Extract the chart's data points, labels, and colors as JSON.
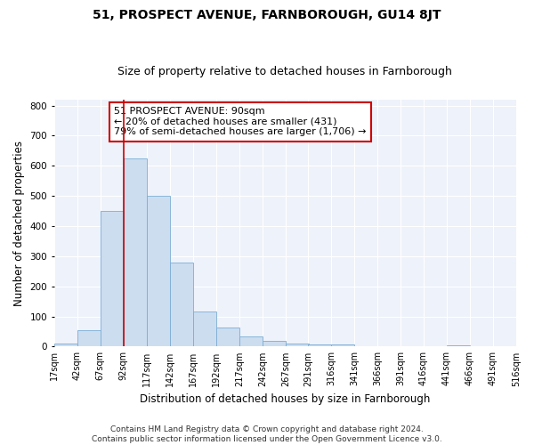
{
  "title": "51, PROSPECT AVENUE, FARNBOROUGH, GU14 8JT",
  "subtitle": "Size of property relative to detached houses in Farnborough",
  "xlabel": "Distribution of detached houses by size in Farnborough",
  "ylabel": "Number of detached properties",
  "bar_color": "#ccddf0",
  "bar_edge_color": "#7aadd4",
  "background_color": "#eef2fa",
  "grid_color": "#ffffff",
  "annotation_text_line1": "51 PROSPECT AVENUE: 90sqm",
  "annotation_text_line2": "← 20% of detached houses are smaller (431)",
  "annotation_text_line3": "79% of semi-detached houses are larger (1,706) →",
  "red_line_bin_index": 3,
  "bins": [
    17,
    42,
    67,
    92,
    117,
    142,
    167,
    192,
    217,
    242,
    267,
    291,
    316,
    341,
    366,
    391,
    416,
    441,
    466,
    491,
    516
  ],
  "heights": [
    10,
    55,
    450,
    625,
    500,
    280,
    115,
    62,
    35,
    20,
    10,
    8,
    8,
    0,
    0,
    0,
    0,
    5,
    0,
    0
  ],
  "tick_labels": [
    "17sqm",
    "42sqm",
    "67sqm",
    "92sqm",
    "117sqm",
    "142sqm",
    "167sqm",
    "192sqm",
    "217sqm",
    "242sqm",
    "267sqm",
    "291sqm",
    "316sqm",
    "341sqm",
    "366sqm",
    "391sqm",
    "416sqm",
    "441sqm",
    "466sqm",
    "491sqm",
    "516sqm"
  ],
  "ylim": [
    0,
    820
  ],
  "yticks": [
    0,
    100,
    200,
    300,
    400,
    500,
    600,
    700,
    800
  ],
  "footnote_line1": "Contains HM Land Registry data © Crown copyright and database right 2024.",
  "footnote_line2": "Contains public sector information licensed under the Open Government Licence v3.0.",
  "title_fontsize": 10,
  "subtitle_fontsize": 9,
  "axis_label_fontsize": 8.5,
  "tick_fontsize": 7,
  "annotation_fontsize": 8,
  "footnote_fontsize": 6.5,
  "fig_width": 6.0,
  "fig_height": 5.0,
  "fig_dpi": 100
}
